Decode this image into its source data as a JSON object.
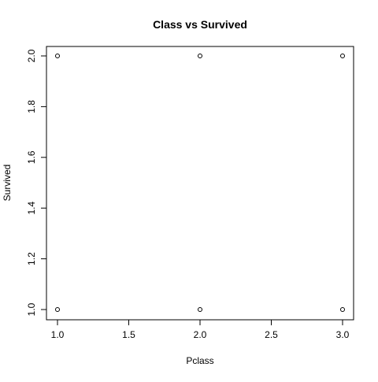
{
  "chart_data": {
    "type": "scatter",
    "title": "Class vs Survived",
    "xlabel": "Pclass",
    "ylabel": "Survived",
    "xlim": [
      1.0,
      3.0
    ],
    "ylim": [
      1.0,
      2.0
    ],
    "x_ticks": [
      1.0,
      1.5,
      2.0,
      2.5,
      3.0
    ],
    "x_tick_labels": [
      "1.0",
      "1.5",
      "2.0",
      "2.5",
      "3.0"
    ],
    "y_ticks": [
      1.0,
      1.2,
      1.4,
      1.6,
      1.8,
      2.0
    ],
    "y_tick_labels": [
      "1.0",
      "1.2",
      "1.4",
      "1.6",
      "1.8",
      "2.0"
    ],
    "grid": false,
    "marker": "open-circle",
    "points": [
      {
        "x": 1.0,
        "y": 2.0
      },
      {
        "x": 2.0,
        "y": 2.0
      },
      {
        "x": 3.0,
        "y": 2.0
      },
      {
        "x": 1.0,
        "y": 1.0
      },
      {
        "x": 2.0,
        "y": 1.0
      },
      {
        "x": 3.0,
        "y": 1.0
      }
    ]
  }
}
